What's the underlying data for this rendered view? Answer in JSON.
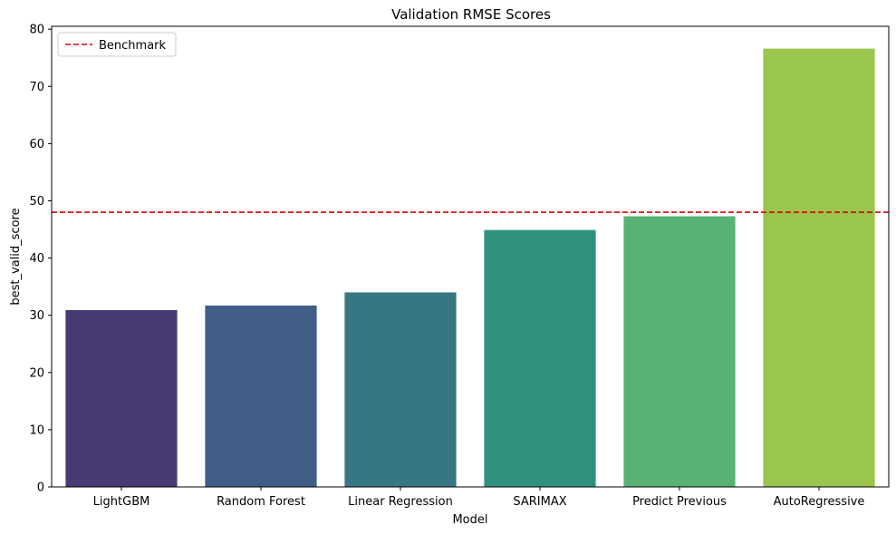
{
  "chart_data": {
    "type": "bar",
    "title": "Validation RMSE Scores",
    "xlabel": "Model",
    "ylabel": "best_valid_score",
    "categories": [
      "LightGBM",
      "Random Forest",
      "Linear Regression",
      "SARIMAX",
      "Predict Previous",
      "AutoRegressive"
    ],
    "values": [
      30.9,
      31.7,
      34.0,
      44.9,
      47.3,
      76.6
    ],
    "colors": [
      "#483b74",
      "#405e86",
      "#377783",
      "#30917e",
      "#59b275",
      "#9ac64d"
    ],
    "ylim": [
      0,
      80.5
    ],
    "yticks": [
      0,
      10,
      20,
      30,
      40,
      50,
      60,
      70,
      80
    ],
    "benchmark": {
      "label": "Benchmark",
      "value": 48.0,
      "color": "#dd0000",
      "style": "dashed"
    },
    "legend": {
      "position": "top-left",
      "entries": [
        "Benchmark"
      ]
    },
    "grid": false
  }
}
